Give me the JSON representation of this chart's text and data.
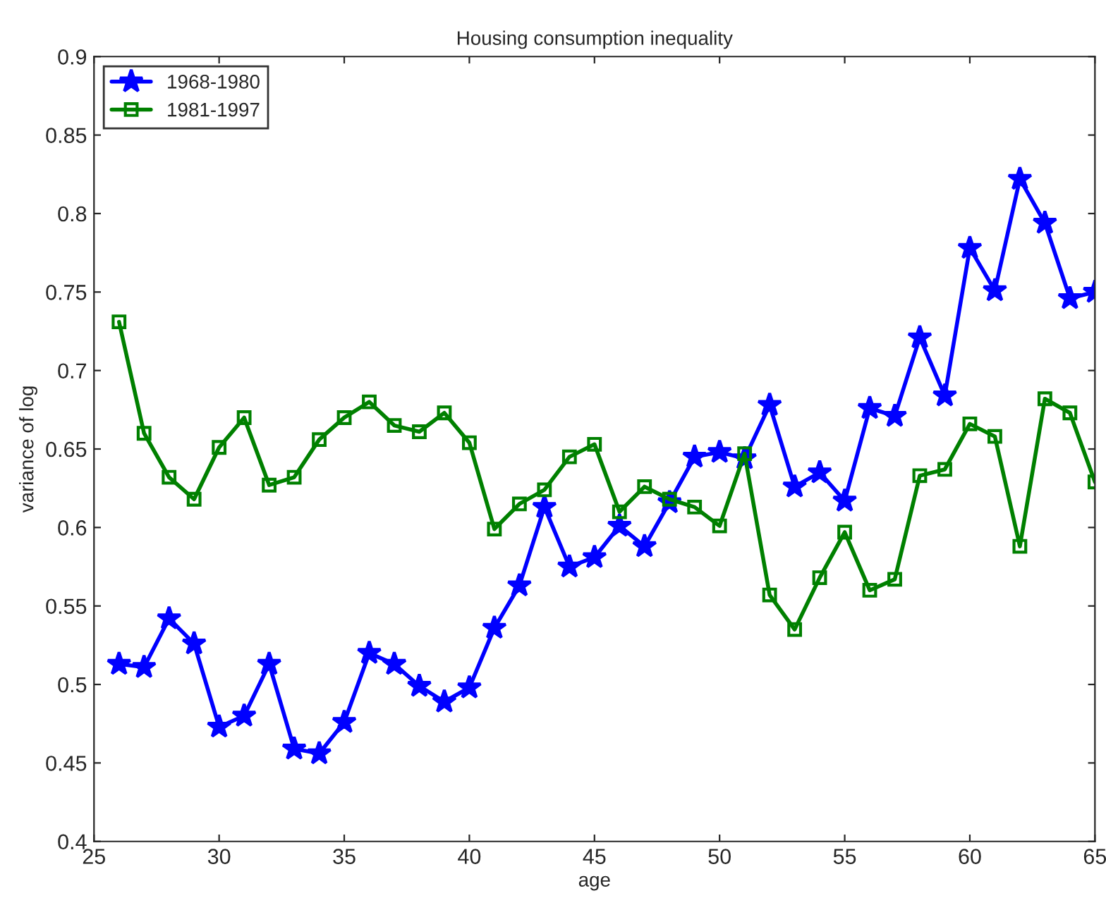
{
  "chart_data": {
    "type": "line",
    "title": "Housing consumption inequality",
    "xlabel": "age",
    "ylabel": "variance of log",
    "x": [
      26,
      27,
      28,
      29,
      30,
      31,
      32,
      33,
      34,
      35,
      36,
      37,
      38,
      39,
      40,
      41,
      42,
      43,
      44,
      45,
      46,
      47,
      48,
      49,
      50,
      51,
      52,
      53,
      54,
      55,
      56,
      57,
      58,
      59,
      60,
      61,
      62,
      63,
      64,
      65
    ],
    "series": [
      {
        "name": "1968-1980",
        "color": "#0000ff",
        "marker": "star",
        "values": [
          0.513,
          0.511,
          0.542,
          0.526,
          0.473,
          0.48,
          0.513,
          0.459,
          0.456,
          0.476,
          0.52,
          0.513,
          0.499,
          0.489,
          0.498,
          0.536,
          0.563,
          0.613,
          0.575,
          0.581,
          0.601,
          0.588,
          0.616,
          0.645,
          0.648,
          0.644,
          0.678,
          0.626,
          0.635,
          0.617,
          0.676,
          0.671,
          0.721,
          0.684,
          0.778,
          0.751,
          0.822,
          0.794,
          0.746,
          0.75
        ]
      },
      {
        "name": "1981-1997",
        "color": "#008000",
        "marker": "square",
        "values": [
          0.731,
          0.66,
          0.632,
          0.618,
          0.651,
          0.67,
          0.627,
          0.632,
          0.656,
          0.67,
          0.68,
          0.665,
          0.661,
          0.673,
          0.654,
          0.599,
          0.615,
          0.624,
          0.645,
          0.653,
          0.61,
          0.626,
          0.618,
          0.613,
          0.601,
          0.647,
          0.557,
          0.535,
          0.568,
          0.597,
          0.56,
          0.567,
          0.633,
          0.637,
          0.666,
          0.658,
          0.588,
          0.682,
          0.673,
          0.629
        ]
      }
    ],
    "xlim": [
      25,
      65
    ],
    "xticks": [
      25,
      30,
      35,
      40,
      45,
      50,
      55,
      60,
      65
    ],
    "ylim": [
      0.4,
      0.9
    ],
    "yticks": [
      0.4,
      0.45,
      0.5,
      0.55,
      0.6,
      0.65,
      0.7,
      0.75,
      0.8,
      0.85,
      0.9
    ],
    "grid": false,
    "legend": "top left",
    "line_style": "solid"
  }
}
